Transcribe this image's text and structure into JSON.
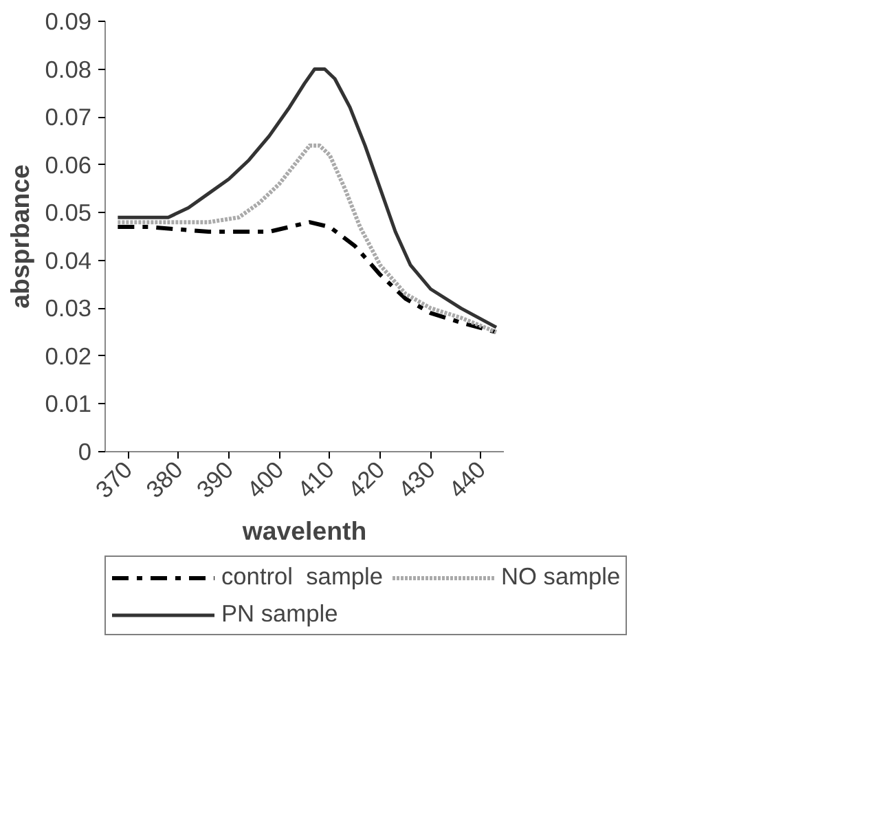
{
  "chart_data": {
    "type": "line",
    "xlabel": "wavelenth",
    "ylabel": "absprbance",
    "xlim": [
      365.5,
      444.5
    ],
    "xticks": [
      370,
      380,
      390,
      400,
      410,
      420,
      430,
      440
    ],
    "ylim": [
      0,
      0.09
    ],
    "yticks": [
      0,
      0.01,
      0.02,
      0.03,
      0.04,
      0.05,
      0.06,
      0.07,
      0.08,
      0.09
    ],
    "grid": false,
    "legend": "bottom",
    "series": [
      {
        "name": "control  sample",
        "color": "#000000",
        "line_style": "dashdot",
        "x": [
          368,
          374,
          380,
          386,
          392,
          398,
          402,
          406,
          410,
          415,
          420,
          425,
          430,
          436,
          443
        ],
        "values": [
          0.047,
          0.047,
          0.0465,
          0.046,
          0.046,
          0.046,
          0.047,
          0.048,
          0.047,
          0.043,
          0.037,
          0.032,
          0.029,
          0.027,
          0.025
        ]
      },
      {
        "name": "NO sample",
        "color": "#aaaaaa",
        "line_style": "dotted",
        "x": [
          368,
          374,
          380,
          386,
          392,
          396,
          400,
          403,
          406,
          408,
          410,
          413,
          416,
          420,
          425,
          430,
          436,
          443
        ],
        "values": [
          0.048,
          0.048,
          0.048,
          0.048,
          0.049,
          0.052,
          0.056,
          0.06,
          0.064,
          0.064,
          0.062,
          0.055,
          0.047,
          0.039,
          0.033,
          0.03,
          0.028,
          0.025
        ]
      },
      {
        "name": "PN sample",
        "color": "#333333",
        "line_style": "solid",
        "x": [
          368,
          374,
          378,
          382,
          386,
          390,
          394,
          398,
          402,
          405,
          407,
          409,
          411,
          414,
          417,
          420,
          423,
          426,
          430,
          436,
          443
        ],
        "values": [
          0.049,
          0.049,
          0.049,
          0.051,
          0.054,
          0.057,
          0.061,
          0.066,
          0.072,
          0.077,
          0.08,
          0.08,
          0.078,
          0.072,
          0.064,
          0.055,
          0.046,
          0.039,
          0.034,
          0.03,
          0.026
        ]
      }
    ]
  }
}
